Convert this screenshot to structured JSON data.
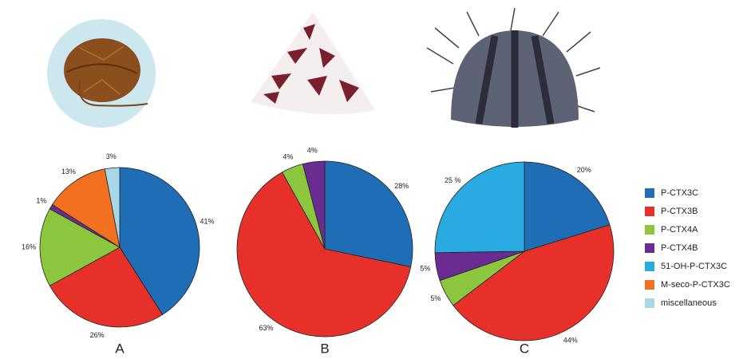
{
  "legend": {
    "labels": [
      "P-CTX3C",
      "P-CTX3B",
      "P-CTX4A",
      "P-CTX4B",
      "51-OH-P-CTX3C",
      "M-seco-P-CTX3C",
      "miscellaneous"
    ],
    "colors": [
      "#1f6eb5",
      "#e8302a",
      "#8cc63f",
      "#6a2c91",
      "#29abe2",
      "#f37021",
      "#a8d8e8"
    ]
  },
  "chart_data": [
    {
      "type": "pie",
      "title": "A",
      "values": [
        41,
        26,
        16,
        1,
        null,
        13,
        3
      ],
      "value_labels": [
        "41%",
        "26%",
        "16%",
        "1%",
        null,
        "13%",
        "3%"
      ]
    },
    {
      "type": "pie",
      "title": "B",
      "values": [
        28,
        63,
        4,
        4,
        null,
        null,
        null
      ],
      "value_labels": [
        "28%",
        "63%",
        "4%",
        "4%",
        null,
        null,
        null
      ]
    },
    {
      "type": "pie",
      "title": "C",
      "values": [
        20,
        44,
        5,
        5,
        25,
        null,
        null
      ],
      "value_labels": [
        "20%",
        "44%",
        "5%",
        "5%",
        "25 %",
        null,
        null
      ]
    }
  ]
}
